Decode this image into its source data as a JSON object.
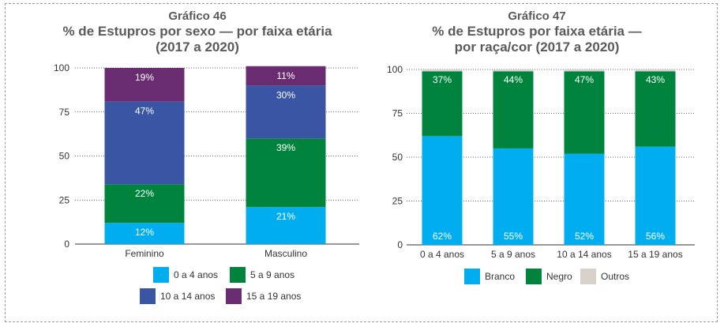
{
  "colors": {
    "age_0_4": "#00aeef",
    "age_5_9": "#00843d",
    "age_10_14": "#3a55a4",
    "age_15_19": "#6a2c70",
    "branco": "#00aeef",
    "negro": "#00843d",
    "outros": "#d6d2cb",
    "title": "#5a5a5a",
    "axis": "#333333",
    "grid": "#333333"
  },
  "chart_data": [
    {
      "type": "bar",
      "stacked": true,
      "title_line1": "Gráfico 46",
      "title_line2": "% de Estupros por sexo — por faixa etária",
      "title_line3": "(2017 a 2020)",
      "categories": [
        "Feminino",
        "Masculino"
      ],
      "series": [
        {
          "name": "0 a 4 anos",
          "values": [
            12,
            21
          ],
          "labels": [
            "12%",
            "21%"
          ]
        },
        {
          "name": "5 a 9 anos",
          "values": [
            22,
            39
          ],
          "labels": [
            "22%",
            "39%"
          ]
        },
        {
          "name": "10 a 14 anos",
          "values": [
            47,
            30
          ],
          "labels": [
            "47%",
            "30%"
          ]
        },
        {
          "name": "15 a 19 anos",
          "values": [
            19,
            11
          ],
          "labels": [
            "19%",
            "11%"
          ]
        }
      ],
      "yticks": [
        "0",
        "25",
        "50",
        "75",
        "100"
      ],
      "ylim": [
        0,
        100
      ],
      "legend_position": "bottom"
    },
    {
      "type": "bar",
      "stacked": true,
      "title_line1": "Gráfico 47",
      "title_line2": "% de Estupros por faixa etária —",
      "title_line3": "por raça/cor (2017 a 2020)",
      "categories": [
        "0 a 4 anos",
        "5 a 9 anos",
        "10 a 14 anos",
        "15 a 19 anos"
      ],
      "series": [
        {
          "name": "Branco",
          "values": [
            62,
            55,
            52,
            56
          ],
          "labels": [
            "62%",
            "55%",
            "52%",
            "56%"
          ]
        },
        {
          "name": "Negro",
          "values": [
            37,
            44,
            47,
            43
          ],
          "labels": [
            "37%",
            "44%",
            "47%",
            "43%"
          ]
        },
        {
          "name": "Outros",
          "values": [
            1,
            1,
            1,
            1
          ],
          "labels": [
            "",
            "",
            "",
            ""
          ]
        }
      ],
      "yticks": [
        "0",
        "25",
        "50",
        "75",
        "100"
      ],
      "ylim": [
        0,
        100
      ],
      "legend_position": "bottom"
    }
  ]
}
